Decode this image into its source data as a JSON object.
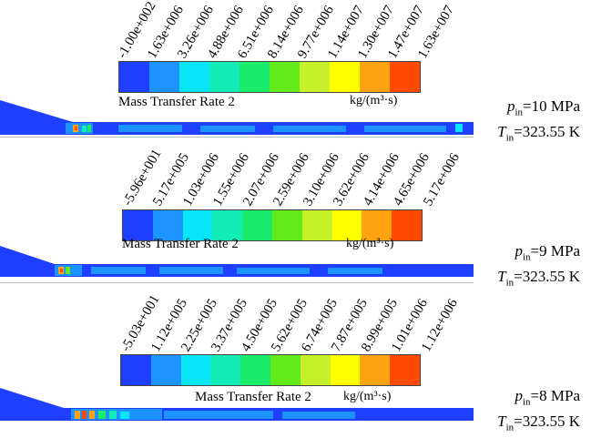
{
  "colormap": [
    "#1f3fff",
    "#1c93ff",
    "#08e6f7",
    "#12edb8",
    "#1aeb6a",
    "#62ea1a",
    "#c6f02a",
    "#ffff00",
    "#ffa312",
    "#ff4a00"
  ],
  "panels": [
    {
      "ticks": [
        "-1.00e+002",
        "1.63e+006",
        "3.26e+006",
        "4.88e+006",
        "6.51e+006",
        "8.14e+006",
        "9.77e+006",
        "1.14e+007",
        "1.30e+007",
        "1.47e+007",
        "1.63e+007"
      ],
      "quantity": "Mass Transfer Rate 2",
      "units": "kg/(m³·s)",
      "p_symbol": "p",
      "p_sub": "in",
      "p_value": "=10 MPa",
      "t_symbol": "T",
      "t_sub": "in",
      "t_value": "=323.55 K"
    },
    {
      "ticks": [
        "-5.96e+001",
        "5.17e+005",
        "1.03e+006",
        "1.55e+006",
        "2.07e+006",
        "2.59e+006",
        "3.10e+006",
        "3.62e+006",
        "4.14e+006",
        "4.65e+006",
        "5.17e+006"
      ],
      "quantity": "Mass Transfer Rate 2",
      "units": "kg/(m³·s)",
      "p_symbol": "p",
      "p_sub": "in",
      "p_value": "=9 MPa",
      "t_symbol": "T",
      "t_sub": "in",
      "t_value": "=323.55 K"
    },
    {
      "ticks": [
        "-5.03e+001",
        "1.12e+005",
        "2.25e+005",
        "3.37e+005",
        "4.50e+005",
        "5.62e+005",
        "6.74e+005",
        "7.87e+005",
        "8.99e+005",
        "1.01e+006",
        "1.12e+006"
      ],
      "quantity": "Mass Transfer Rate 2",
      "units": "kg/(m³·s)",
      "p_symbol": "p",
      "p_sub": "in",
      "p_value": "=8 MPa",
      "t_symbol": "T",
      "t_sub": "in",
      "t_value": "=323.55 K"
    }
  ]
}
